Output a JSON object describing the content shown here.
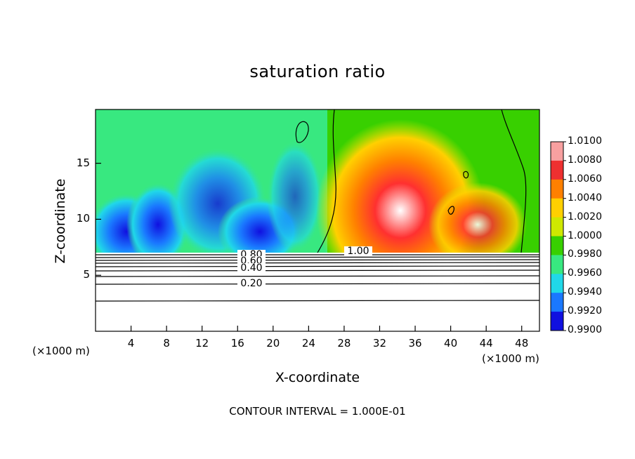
{
  "chart_data": {
    "type": "heatmap",
    "title": "saturation ratio",
    "xlabel": "X-coordinate",
    "ylabel": "Z-coordinate",
    "x_unit": "(×1000 m)",
    "y_unit": "(×1000 m)",
    "xlim": [
      0,
      50
    ],
    "ylim": [
      0,
      19.8
    ],
    "x_ticks": [
      "4",
      "8",
      "12",
      "16",
      "20",
      "24",
      "28",
      "32",
      "36",
      "40",
      "44",
      "48"
    ],
    "y_ticks": [
      "5",
      "10",
      "15"
    ],
    "footer": "CONTOUR INTERVAL = 1.000E-01",
    "colorbar": {
      "levels": [
        "1.0100",
        "1.0080",
        "1.0060",
        "1.0040",
        "1.0020",
        "1.0000",
        "0.9980",
        "0.9960",
        "0.9940",
        "0.9920",
        "0.9900"
      ],
      "colors": [
        "#f8a0a0",
        "#ee3030",
        "#ff8000",
        "#ffd000",
        "#cfe800",
        "#38d000",
        "#38e880",
        "#20d8e8",
        "#1a78ff",
        "#1010e0",
        "#7000a0"
      ]
    },
    "contour_labels": [
      "0.80",
      "0.60",
      "0.40",
      "0.20",
      "1.00"
    ],
    "contour_levels": [
      0.2,
      0.4,
      0.6,
      0.8,
      1.0
    ]
  }
}
